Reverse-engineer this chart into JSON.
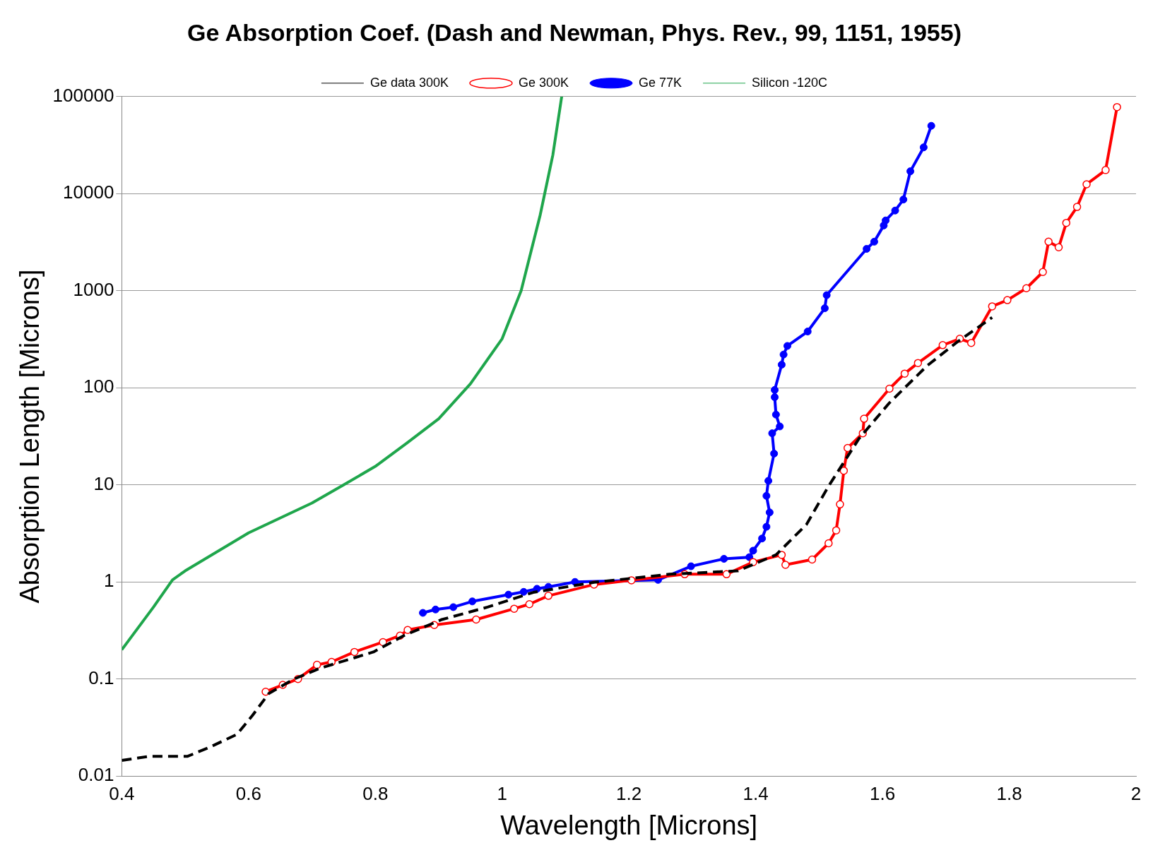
{
  "chart_data": {
    "type": "line",
    "title": "Ge Absorption Coef. (Dash and Newman, Phys. Rev., 99, 1151, 1955)",
    "xlabel": "Wavelength [Microns]",
    "ylabel": "Absorption Length [Microns]",
    "log": "y",
    "grid": "y",
    "legend": "top",
    "xlim": [
      0.4,
      2
    ],
    "xticks": [
      0.4,
      0.6,
      0.8,
      1,
      1.2,
      1.4,
      1.6,
      1.8,
      2
    ],
    "ylim": [
      0.01,
      100000
    ],
    "yticks": [
      0.01,
      0.1,
      1,
      10,
      100,
      1000,
      10000,
      100000
    ],
    "series": [
      {
        "name": "Silicon -120C",
        "color": "#1fa64c",
        "marker": "none",
        "x": [
          0.4,
          0.45,
          0.48,
          0.5,
          0.6,
          0.7,
          0.75,
          0.8,
          0.85,
          0.9,
          0.95,
          1.0,
          1.03,
          1.06,
          1.08,
          1.094
        ],
        "values": [
          0.2,
          0.55,
          1.05,
          1.3,
          3.2,
          6.5,
          10,
          15.5,
          27,
          48,
          110,
          320,
          1000,
          6000,
          25000,
          100000
        ]
      },
      {
        "name": "Ge 77K",
        "color": "#0000ff",
        "marker": "circle",
        "x": [
          0.875,
          0.895,
          0.923,
          0.953,
          1.01,
          1.034,
          1.055,
          1.073,
          1.115,
          1.246,
          1.298,
          1.35,
          1.39,
          1.396,
          1.41,
          1.417,
          1.422,
          1.417,
          1.42,
          1.429,
          1.426,
          1.438,
          1.432,
          1.43,
          1.43,
          1.441,
          1.444,
          1.45,
          1.482,
          1.509,
          1.512,
          1.575,
          1.587,
          1.602,
          1.605,
          1.62,
          1.633,
          1.644,
          1.665,
          1.677
        ],
        "values": [
          0.48,
          0.52,
          0.55,
          0.63,
          0.74,
          0.79,
          0.85,
          0.89,
          1.0,
          1.05,
          1.45,
          1.73,
          1.8,
          2.1,
          2.8,
          3.7,
          5.2,
          7.7,
          11,
          21,
          34,
          40,
          53,
          80,
          95,
          173,
          220,
          270,
          380,
          660,
          900,
          2700,
          3200,
          4700,
          5300,
          6700,
          8700,
          17000,
          30000,
          50000
        ]
      },
      {
        "name": "Ge 300K",
        "color": "#ff0000",
        "marker": "circle",
        "x": [
          0.627,
          0.654,
          0.678,
          0.708,
          0.731,
          0.767,
          0.812,
          0.839,
          0.851,
          0.893,
          0.959,
          1.019,
          1.043,
          1.073,
          1.145,
          1.204,
          1.288,
          1.354,
          1.396,
          1.441,
          1.447,
          1.489,
          1.515,
          1.527,
          1.533,
          1.539,
          1.545,
          1.569,
          1.571,
          1.611,
          1.635,
          1.656,
          1.695,
          1.722,
          1.74,
          1.773,
          1.797,
          1.827,
          1.853,
          1.862,
          1.878,
          1.89,
          1.907,
          1.922,
          1.952,
          1.97
        ],
        "values": [
          0.074,
          0.087,
          0.1,
          0.14,
          0.15,
          0.19,
          0.24,
          0.28,
          0.32,
          0.36,
          0.41,
          0.53,
          0.59,
          0.72,
          0.94,
          1.04,
          1.2,
          1.2,
          1.6,
          1.9,
          1.5,
          1.7,
          2.5,
          3.4,
          6.3,
          14,
          24,
          34,
          48,
          98,
          140,
          180,
          275,
          320,
          290,
          690,
          800,
          1060,
          1560,
          3200,
          2800,
          5000,
          7300,
          12500,
          17500,
          78000
        ]
      },
      {
        "name": "Ge data 300K",
        "color": "#000000",
        "marker": "none",
        "line_style": "dashed",
        "x": [
          0.4,
          0.444,
          0.504,
          0.54,
          0.582,
          0.606,
          0.632,
          0.672,
          0.714,
          0.797,
          0.845,
          0.905,
          0.977,
          1.049,
          1.145,
          1.264,
          1.372,
          1.432,
          1.48,
          1.515,
          1.563,
          1.611,
          1.671,
          1.719,
          1.773
        ],
        "values": [
          0.0145,
          0.016,
          0.016,
          0.02,
          0.027,
          0.042,
          0.071,
          0.1,
          0.13,
          0.19,
          0.28,
          0.41,
          0.55,
          0.78,
          0.99,
          1.2,
          1.3,
          1.9,
          3.9,
          9.7,
          30,
          70,
          170,
          300,
          530
        ]
      }
    ]
  }
}
